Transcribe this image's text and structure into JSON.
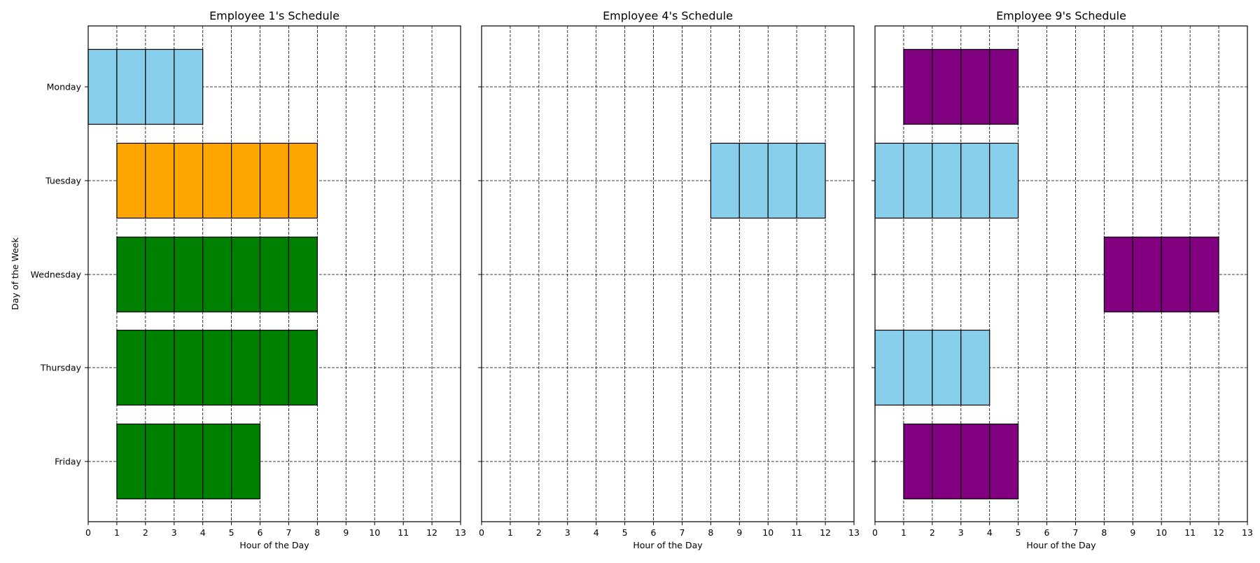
{
  "chart_data": {
    "type": "bar",
    "orientation": "horizontal",
    "categories": [
      "Monday",
      "Tuesday",
      "Wednesday",
      "Thursday",
      "Friday"
    ],
    "ylabel": "Day of the Week",
    "xlabel": "Hour of the Day",
    "xlim": [
      0,
      13
    ],
    "xticks": [
      0,
      1,
      2,
      3,
      4,
      5,
      6,
      7,
      8,
      9,
      10,
      11,
      12,
      13
    ],
    "grid": "dashed, both axes",
    "colors": {
      "skyblue": "#87ceeb",
      "orange": "#ffa500",
      "green": "#008000",
      "purple": "#800080"
    },
    "panels": [
      {
        "title": "Employee 1's Schedule",
        "bars": [
          {
            "day": "Monday",
            "start": 0,
            "end": 4,
            "color": "#87ceeb"
          },
          {
            "day": "Tuesday",
            "start": 1,
            "end": 8,
            "color": "#ffa500"
          },
          {
            "day": "Wednesday",
            "start": 1,
            "end": 8,
            "color": "#008000"
          },
          {
            "day": "Thursday",
            "start": 1,
            "end": 8,
            "color": "#008000"
          },
          {
            "day": "Friday",
            "start": 1,
            "end": 6,
            "color": "#008000"
          }
        ]
      },
      {
        "title": "Employee 4's Schedule",
        "bars": [
          {
            "day": "Tuesday",
            "start": 8,
            "end": 12,
            "color": "#87ceeb"
          }
        ]
      },
      {
        "title": "Employee 9's Schedule",
        "bars": [
          {
            "day": "Monday",
            "start": 1,
            "end": 5,
            "color": "#800080"
          },
          {
            "day": "Tuesday",
            "start": 0,
            "end": 5,
            "color": "#87ceeb"
          },
          {
            "day": "Wednesday",
            "start": 8,
            "end": 12,
            "color": "#800080"
          },
          {
            "day": "Thursday",
            "start": 0,
            "end": 4,
            "color": "#87ceeb"
          },
          {
            "day": "Friday",
            "start": 1,
            "end": 5,
            "color": "#800080"
          }
        ]
      }
    ]
  }
}
